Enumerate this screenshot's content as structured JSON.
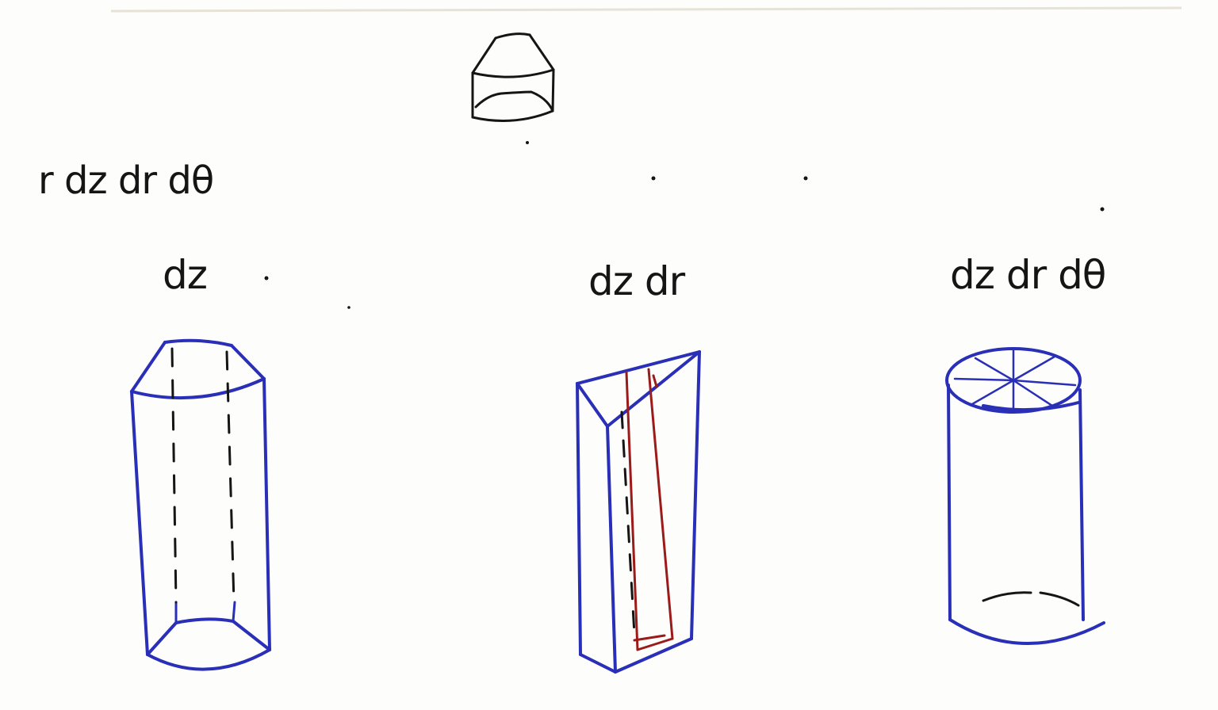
{
  "expression": "r dz dr dθ",
  "figures": [
    {
      "id": "shell-sector",
      "label": "dz"
    },
    {
      "id": "wedge-column",
      "label": "dz dr"
    },
    {
      "id": "full-cylinder",
      "label": "dz dr dθ"
    }
  ],
  "colors": {
    "ink": "#151515",
    "blue_ink": "#2a2fb8",
    "red_ink": "#9b1b1b",
    "paper": "#fdfdfb"
  }
}
